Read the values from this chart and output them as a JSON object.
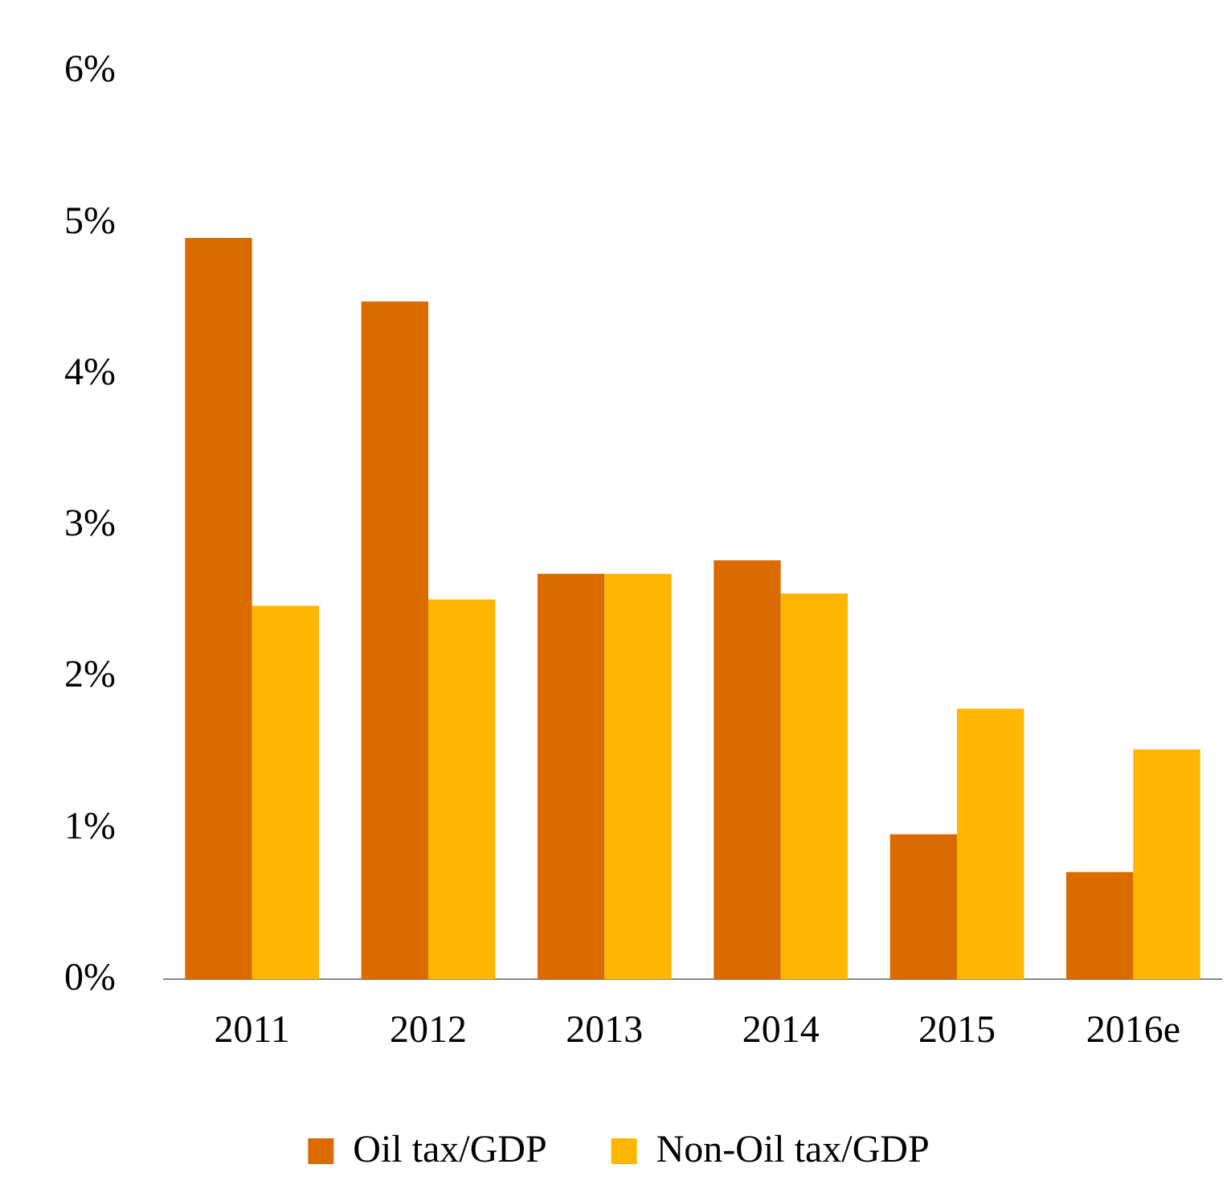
{
  "chart_data": {
    "type": "bar",
    "categories": [
      "2011",
      "2012",
      "2013",
      "2014",
      "2015",
      "2016e"
    ],
    "series": [
      {
        "name": "Oil tax/GDP",
        "color": "#d96b00",
        "values": [
          4.9,
          4.48,
          2.68,
          2.77,
          0.96,
          0.71
        ]
      },
      {
        "name": "Non-Oil tax/GDP",
        "color": "#ffb600",
        "values": [
          2.47,
          2.51,
          2.68,
          2.55,
          1.79,
          1.52
        ]
      }
    ],
    "ylim": [
      0,
      6
    ],
    "yticks": [
      {
        "value": 0,
        "label": "0%"
      },
      {
        "value": 1,
        "label": "1%"
      },
      {
        "value": 2,
        "label": "2%"
      },
      {
        "value": 3,
        "label": "3%"
      },
      {
        "value": 4,
        "label": "4%"
      },
      {
        "value": 5,
        "label": "5%"
      },
      {
        "value": 6,
        "label": "6%"
      }
    ],
    "grid": false,
    "legend": "bottom"
  }
}
